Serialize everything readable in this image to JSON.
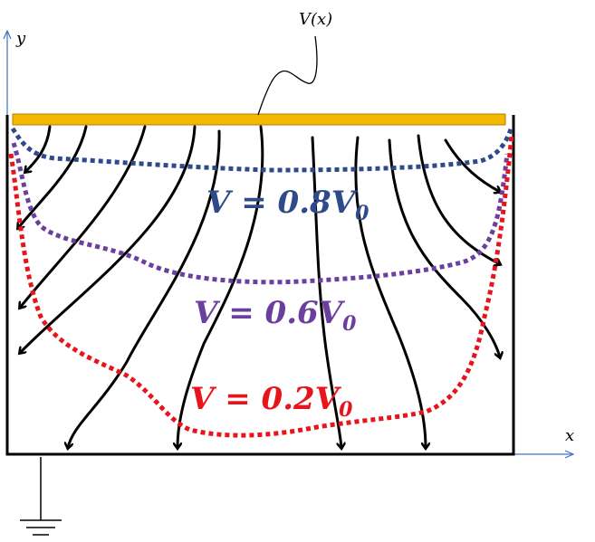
{
  "axes": {
    "y_label": "y",
    "x_label": "x"
  },
  "plate_label": "V(x)",
  "equipotentials": [
    {
      "main": "V = 0.8V",
      "sub": "0"
    },
    {
      "main": "V = 0.6V",
      "sub": "0"
    },
    {
      "main": "V = 0.2V",
      "sub": "0"
    }
  ]
}
